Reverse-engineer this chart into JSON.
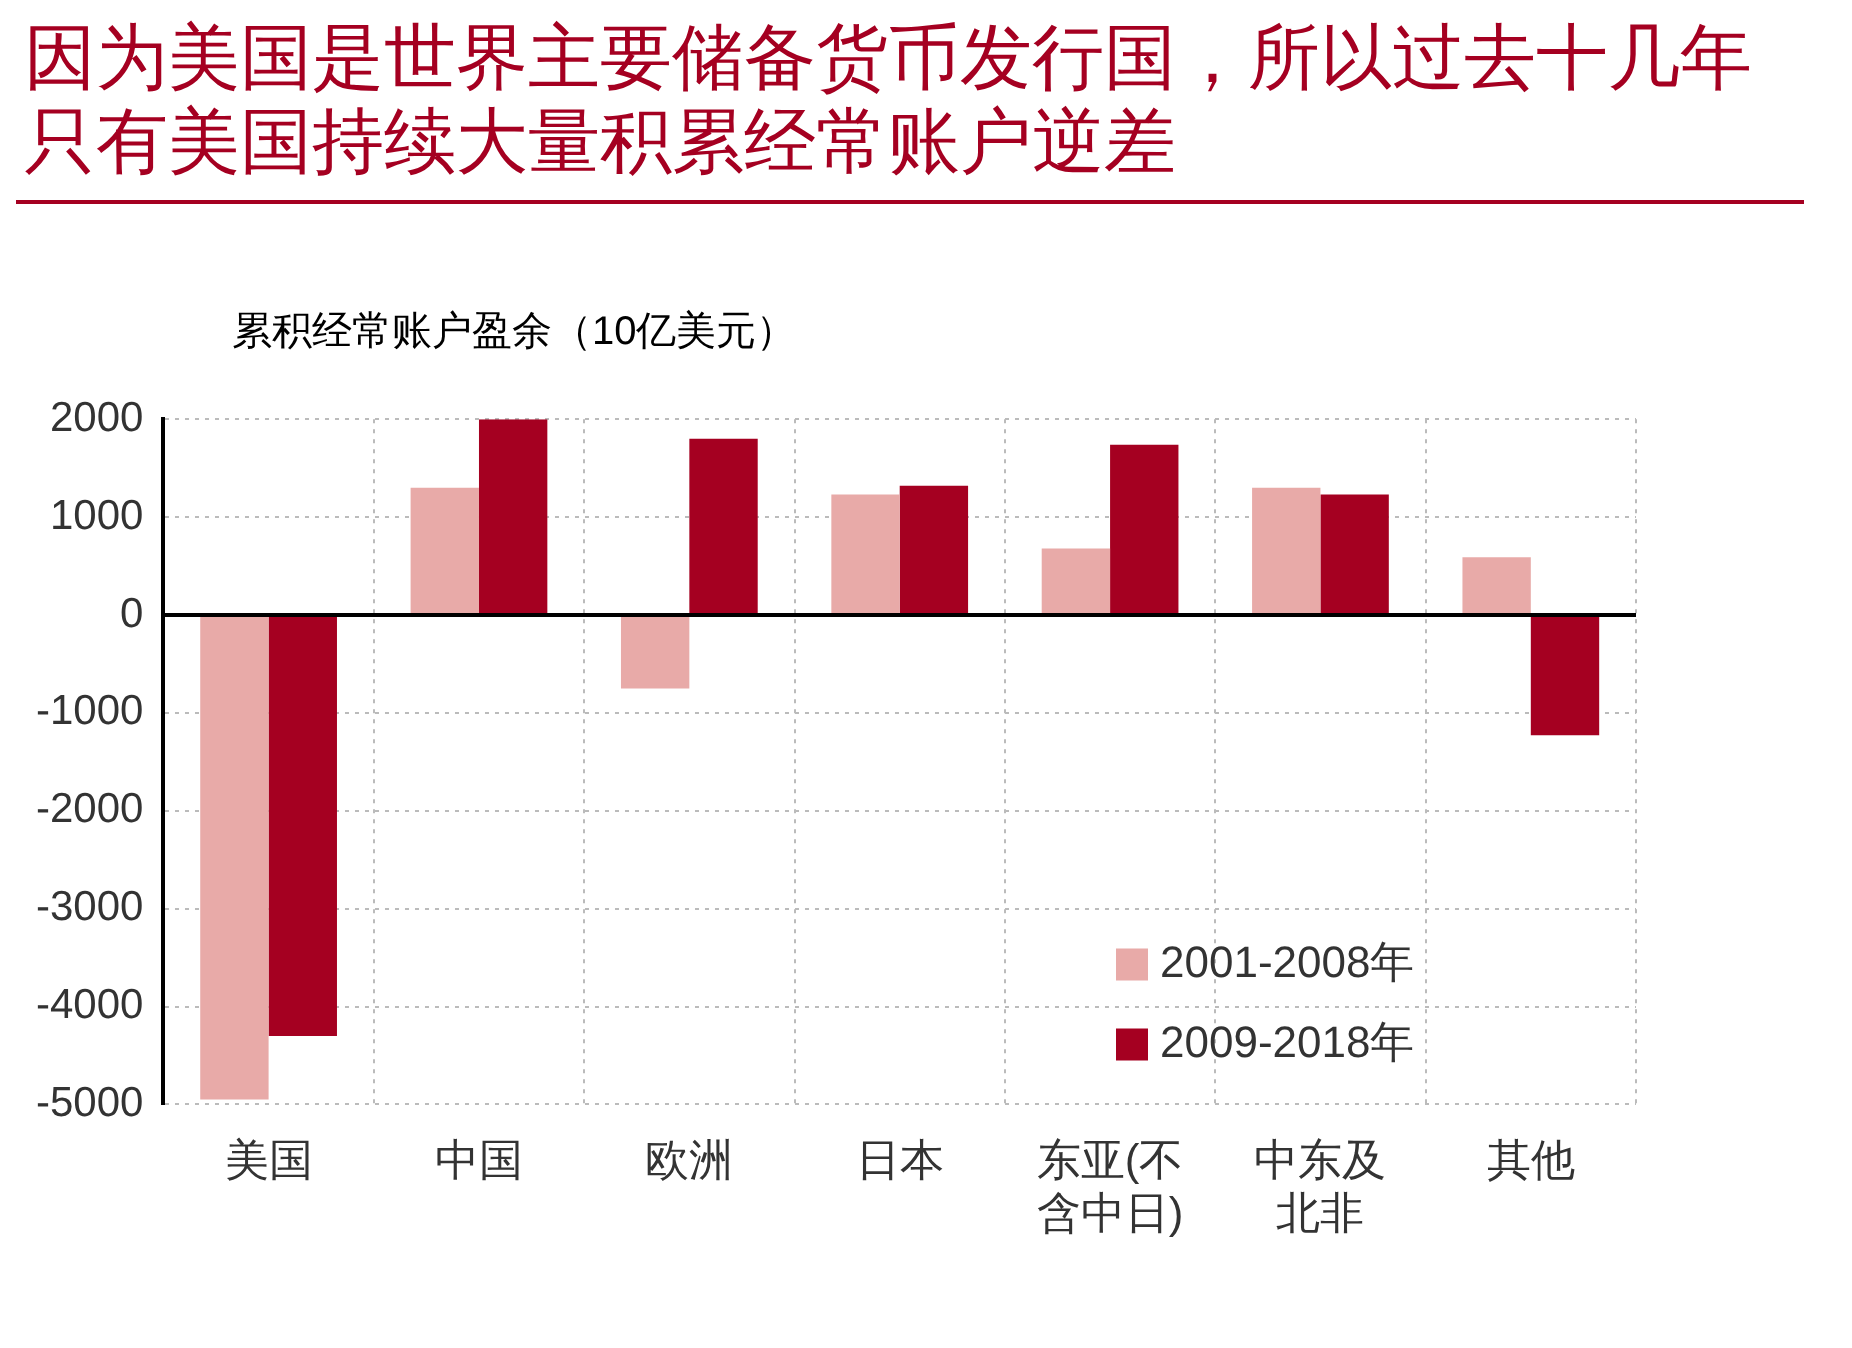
{
  "chart_data": {
    "type": "bar",
    "title": "因为美国是世界主要储备货币发行国，所以过去十几年只有美国持续大量积累经常账户逆差",
    "ylabel": "累积经常账户盈余（10亿美元）",
    "categories": [
      "美国",
      "中国",
      "欧洲",
      "日本",
      "东亚(不含中日)",
      "中东及北非",
      "其他"
    ],
    "series": [
      {
        "name": "2001-2008年",
        "color": "#e8aaa8",
        "values": [
          -4950,
          1300,
          -750,
          1230,
          680,
          1300,
          590
        ]
      },
      {
        "name": "2009-2018年",
        "color": "#a50021",
        "values": [
          -4300,
          2000,
          1800,
          1320,
          1740,
          1230,
          -1230
        ]
      }
    ],
    "ylim": [
      -5000,
      2000
    ],
    "yticks": [
      -5000,
      -4000,
      -3000,
      -2000,
      -1000,
      0,
      1000,
      2000
    ],
    "grid": true,
    "legend": "bottom right",
    "ref_lines": [
      {
        "axis": "y",
        "value": 0,
        "color": "#000000"
      }
    ]
  }
}
